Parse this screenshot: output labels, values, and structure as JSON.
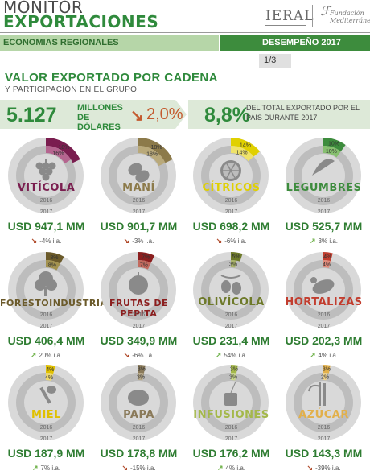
{
  "header": {
    "title_line1": "MONITOR",
    "title_line2": "EXPORTACIONES",
    "logo_ieral": "IERAL",
    "logo_fundacion": "Fundación Mediterránea",
    "section": "ECONOMIAS REGIONALES",
    "report": "DESEMPEÑO 2017",
    "page": "1/3"
  },
  "headline": {
    "title": "VALOR EXPORTADO POR CADENA",
    "subtitle": "Y PARTICIPACIÓN EN EL GRUPO",
    "total_value": "5.127",
    "total_unit": "MILLONES DE DÓLARES",
    "change_arrow": "↘",
    "change": "2,0%",
    "share": "8,8%",
    "share_note": "DEL TOTAL EXPORTADO POR EL PAÍS DURANTE 2017"
  },
  "year_labels": {
    "y2016": "2016",
    "y2017": "2017"
  },
  "colors": {
    "ring_bg": "#d9d9d9",
    "ring_inner_bg": "#bdbdbd",
    "icon": "#8a8a8a",
    "positive": "#6fb24a",
    "negative": "#b04a2a"
  },
  "chains": [
    {
      "name": "VITÍCOLA",
      "icon": "grapes-icon",
      "share_2016": 16,
      "share_2017": 18,
      "value": "USD 947,1 MM",
      "change": "-4% i.a.",
      "trend": "down",
      "color": "#7a1d4f",
      "color_light": "#b5658f",
      "label_2016": "16%",
      "label_2017": "18%",
      "small": false
    },
    {
      "name": "MANÍ",
      "icon": "peanut-icon",
      "share_2016": 18,
      "share_2017": 18,
      "value": "USD 901,7 MM",
      "change": "-3% i.a.",
      "trend": "down",
      "color": "#8c7a4a",
      "color_light": "#b9a97a",
      "label_2016": "18%",
      "label_2017": "18%",
      "small": false
    },
    {
      "name": "CÍTRICOS",
      "icon": "lemon-icon",
      "share_2016": 14,
      "share_2017": 14,
      "value": "USD 698,2 MM",
      "change": "-6% i.a.",
      "trend": "down",
      "color": "#e0d000",
      "color_light": "#efe36a",
      "label_2016": "14%",
      "label_2017": "14%",
      "small": false
    },
    {
      "name": "LEGUMBRES",
      "icon": "pea-pod-icon",
      "share_2016": 10,
      "share_2017": 10,
      "value": "USD 525,7 MM",
      "change": "3% i.a.",
      "trend": "up",
      "color": "#3d8c3d",
      "color_light": "#86bf6f",
      "label_2016": "10%",
      "label_2017": "10%",
      "small": false
    },
    {
      "name": "FORESTOINDUSTRIA",
      "icon": "tree-icon",
      "share_2016": 8,
      "share_2017": 8,
      "value": "USD 406,4 MM",
      "change": "20% i.a.",
      "trend": "up",
      "color": "#6b5a2a",
      "color_light": "#a3924f",
      "label_2016": "8%",
      "label_2017": "8%",
      "small": true
    },
    {
      "name": "FRUTAS DE PEPITA",
      "icon": "apple-icon",
      "share_2016": 7,
      "share_2017": 7,
      "value": "USD 349,9 MM",
      "change": "-6% i.a.",
      "trend": "down",
      "color": "#8b1e1e",
      "color_light": "#c26a5e",
      "label_2016": "7%",
      "label_2017": "7%",
      "small": true
    },
    {
      "name": "OLIVÍCOLA",
      "icon": "olive-icon",
      "share_2016": 3,
      "share_2017": 5,
      "value": "USD 231,4 MM",
      "change": "54% i.a.",
      "trend": "up",
      "color": "#6e7a2a",
      "color_light": "#a9b36a",
      "label_2016": "3%",
      "label_2017": "5%",
      "small": false
    },
    {
      "name": "HORTALIZAS",
      "icon": "eggplant-icon",
      "share_2016": 4,
      "share_2017": 4,
      "value": "USD 202,3 MM",
      "change": "4% i.a.",
      "trend": "up",
      "color": "#c23d2e",
      "color_light": "#e08a7a",
      "label_2016": "4%",
      "label_2017": "4%",
      "small": false
    },
    {
      "name": "MIEL",
      "icon": "honey-dipper-icon",
      "share_2016": 4,
      "share_2017": 4,
      "value": "USD 187,9 MM",
      "change": "7% i.a.",
      "trend": "up",
      "color": "#e0c000",
      "color_light": "#efd96a",
      "label_2016": "4%",
      "label_2017": "4%",
      "small": false
    },
    {
      "name": "PAPA",
      "icon": "potato-icon",
      "share_2016": 3,
      "share_2017": 3,
      "value": "USD 178,8 MM",
      "change": "-15% i.a.",
      "trend": "down",
      "color": "#8a7a5a",
      "color_light": "#b8a988",
      "label_2016": "3%",
      "label_2017": "3%",
      "small": false
    },
    {
      "name": "INFUSIONES",
      "icon": "tea-bag-icon",
      "share_2016": 3,
      "share_2017": 3,
      "value": "USD 176,2 MM",
      "change": "4% i.a.",
      "trend": "up",
      "color": "#a4b84a",
      "color_light": "#c9d78a",
      "label_2016": "3%",
      "label_2017": "3%",
      "small": false
    },
    {
      "name": "AZÚCAR",
      "icon": "sugarcane-icon",
      "share_2016": 2,
      "share_2017": 3,
      "value": "USD 143,3 MM",
      "change": "-39% i.a.",
      "trend": "down",
      "color": "#e2b04a",
      "color_light": "#efd28c",
      "label_2016": "2%",
      "label_2017": "3%",
      "small": false
    }
  ]
}
